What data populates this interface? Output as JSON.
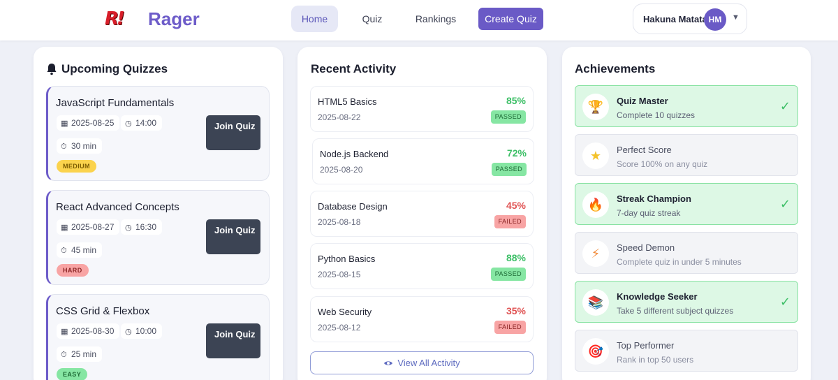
{
  "header": {
    "logo_mark": "R!",
    "brand": "Rager",
    "nav": {
      "home": "Home",
      "quiz": "Quiz",
      "rankings": "Rankings",
      "create": "Create Quiz"
    },
    "user": {
      "name": "Hakuna Matata",
      "initials": "HM",
      "caret": "▼"
    }
  },
  "upcoming": {
    "title": "Upcoming Quizzes",
    "quizzes": [
      {
        "title": "JavaScript Fundamentals",
        "date": "2025-08-25",
        "time": "14:00",
        "duration": "30 min",
        "level": "MEDIUM",
        "join": "Join Quiz"
      },
      {
        "title": "React Advanced Concepts",
        "date": "2025-08-27",
        "time": "16:30",
        "duration": "45 min",
        "level": "HARD",
        "join": "Join Quiz"
      },
      {
        "title": "CSS Grid & Flexbox",
        "date": "2025-08-30",
        "time": "10:00",
        "duration": "25 min",
        "level": "EASY",
        "join": "Join Quiz"
      }
    ]
  },
  "recent": {
    "title": "Recent Activity",
    "items": [
      {
        "title": "HTML5 Basics",
        "date": "2025-08-22",
        "score": "85%",
        "status": "PASSED"
      },
      {
        "title": "Node.js Backend",
        "date": "2025-08-20",
        "score": "72%",
        "status": "PASSED"
      },
      {
        "title": "Database Design",
        "date": "2025-08-18",
        "score": "45%",
        "status": "FAILED"
      },
      {
        "title": "Python Basics",
        "date": "2025-08-15",
        "score": "88%",
        "status": "PASSED"
      },
      {
        "title": "Web Security",
        "date": "2025-08-12",
        "score": "35%",
        "status": "FAILED"
      }
    ],
    "view_all": "View All Activity"
  },
  "achievements": {
    "title": "Achievements",
    "items": [
      {
        "title": "Quiz Master",
        "desc": "Complete 10 quizzes",
        "icon": "trophy-icon",
        "unlocked": true
      },
      {
        "title": "Perfect Score",
        "desc": "Score 100% on any quiz",
        "icon": "star-icon",
        "unlocked": false
      },
      {
        "title": "Streak Champion",
        "desc": "7-day quiz streak",
        "icon": "fire-icon",
        "unlocked": true
      },
      {
        "title": "Speed Demon",
        "desc": "Complete quiz in under 5 minutes",
        "icon": "lightning-icon",
        "unlocked": false
      },
      {
        "title": "Knowledge Seeker",
        "desc": "Take 5 different subject quizzes",
        "icon": "books-icon",
        "unlocked": true
      },
      {
        "title": "Top Performer",
        "desc": "Rank in top 50 users",
        "icon": "target-icon",
        "unlocked": false
      }
    ]
  },
  "colors": {
    "brand": "#6d5cc9",
    "medium": "#fbd34d",
    "hard": "#f8a4a4",
    "easy": "#86e6a3"
  }
}
